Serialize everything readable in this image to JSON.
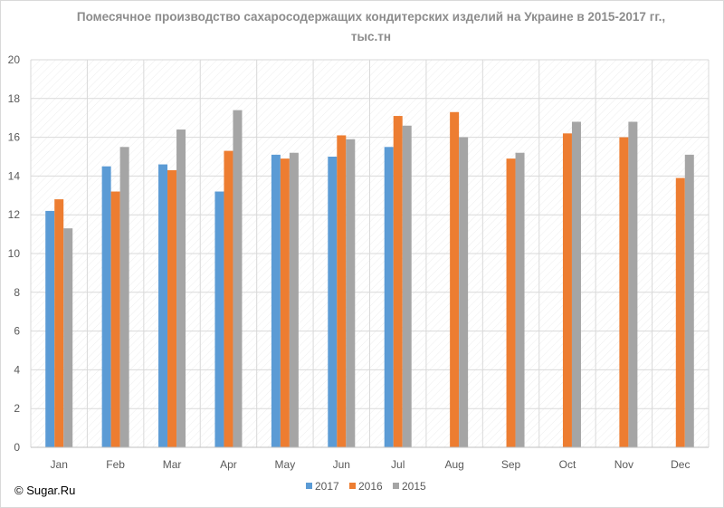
{
  "chart_data": {
    "type": "bar",
    "title_line1": "Помесячное производство сахаросодержащих кондитерских изделий на Украине в 2015-2017 гг.,",
    "title_line2": "тыс.тн",
    "categories": [
      "Jan",
      "Feb",
      "Mar",
      "Apr",
      "May",
      "Jun",
      "Jul",
      "Aug",
      "Sep",
      "Oct",
      "Nov",
      "Dec"
    ],
    "series": [
      {
        "name": "2017",
        "color": "#5b9bd5",
        "values": [
          12.2,
          14.5,
          14.6,
          13.2,
          15.1,
          15.0,
          15.5,
          null,
          null,
          null,
          null,
          null
        ]
      },
      {
        "name": "2016",
        "color": "#ed7d31",
        "values": [
          12.8,
          13.2,
          14.3,
          15.3,
          14.9,
          16.1,
          17.1,
          17.3,
          14.9,
          16.2,
          16.0,
          13.9
        ]
      },
      {
        "name": "2015",
        "color": "#a5a5a5",
        "values": [
          11.3,
          15.5,
          16.4,
          17.4,
          15.2,
          15.9,
          16.6,
          16.0,
          15.2,
          16.8,
          16.8,
          15.1
        ]
      }
    ],
    "ylim": [
      0,
      20
    ],
    "yticks": [
      0,
      2,
      4,
      6,
      8,
      10,
      12,
      14,
      16,
      18,
      20
    ],
    "grid": true,
    "legend_position": "bottom"
  },
  "footer": {
    "copyright": "© Sugar.Ru"
  }
}
